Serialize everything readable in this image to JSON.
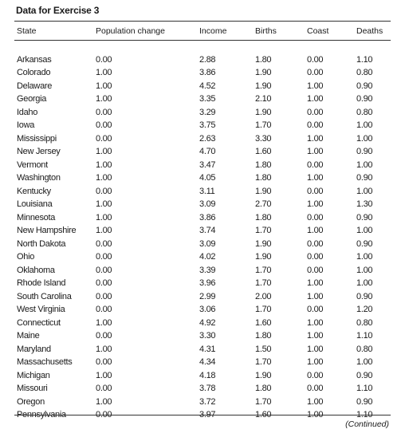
{
  "title": "Data for Exercise 3",
  "headers": {
    "state": "State",
    "population_change": "Population change",
    "income": "Income",
    "births": "Births",
    "coast": "Coast",
    "deaths": "Deaths"
  },
  "rows": [
    {
      "state": "Arkansas",
      "population_change": "0.00",
      "income": "2.88",
      "births": "1.80",
      "coast": "0.00",
      "deaths": "1.10"
    },
    {
      "state": "Colorado",
      "population_change": "1.00",
      "income": "3.86",
      "births": "1.90",
      "coast": "0.00",
      "deaths": "0.80"
    },
    {
      "state": "Delaware",
      "population_change": "1.00",
      "income": "4.52",
      "births": "1.90",
      "coast": "1.00",
      "deaths": "0.90"
    },
    {
      "state": "Georgia",
      "population_change": "1.00",
      "income": "3.35",
      "births": "2.10",
      "coast": "1.00",
      "deaths": "0.90"
    },
    {
      "state": "Idaho",
      "population_change": "0.00",
      "income": "3.29",
      "births": "1.90",
      "coast": "0.00",
      "deaths": "0.80"
    },
    {
      "state": "Iowa",
      "population_change": "0.00",
      "income": "3.75",
      "births": "1.70",
      "coast": "0.00",
      "deaths": "1.00"
    },
    {
      "state": "Mississippi",
      "population_change": "0.00",
      "income": "2.63",
      "births": "3.30",
      "coast": "1.00",
      "deaths": "1.00"
    },
    {
      "state": "New Jersey",
      "population_change": "1.00",
      "income": "4.70",
      "births": "1.60",
      "coast": "1.00",
      "deaths": "0.90"
    },
    {
      "state": "Vermont",
      "population_change": "1.00",
      "income": "3.47",
      "births": "1.80",
      "coast": "0.00",
      "deaths": "1.00"
    },
    {
      "state": "Washington",
      "population_change": "1.00",
      "income": "4.05",
      "births": "1.80",
      "coast": "1.00",
      "deaths": "0.90"
    },
    {
      "state": "Kentucky",
      "population_change": "0.00",
      "income": "3.11",
      "births": "1.90",
      "coast": "0.00",
      "deaths": "1.00"
    },
    {
      "state": "Louisiana",
      "population_change": "1.00",
      "income": "3.09",
      "births": "2.70",
      "coast": "1.00",
      "deaths": "1.30"
    },
    {
      "state": "Minnesota",
      "population_change": "1.00",
      "income": "3.86",
      "births": "1.80",
      "coast": "0.00",
      "deaths": "0.90"
    },
    {
      "state": "New Hampshire",
      "population_change": "1.00",
      "income": "3.74",
      "births": "1.70",
      "coast": "1.00",
      "deaths": "1.00"
    },
    {
      "state": "North Dakota",
      "population_change": "0.00",
      "income": "3.09",
      "births": "1.90",
      "coast": "0.00",
      "deaths": "0.90"
    },
    {
      "state": "Ohio",
      "population_change": "0.00",
      "income": "4.02",
      "births": "1.90",
      "coast": "0.00",
      "deaths": "1.00"
    },
    {
      "state": "Oklahoma",
      "population_change": "0.00",
      "income": "3.39",
      "births": "1.70",
      "coast": "0.00",
      "deaths": "1.00"
    },
    {
      "state": "Rhode Island",
      "population_change": "0.00",
      "income": "3.96",
      "births": "1.70",
      "coast": "1.00",
      "deaths": "1.00"
    },
    {
      "state": "South Carolina",
      "population_change": "0.00",
      "income": "2.99",
      "births": "2.00",
      "coast": "1.00",
      "deaths": "0.90"
    },
    {
      "state": "West Virginia",
      "population_change": "0.00",
      "income": "3.06",
      "births": "1.70",
      "coast": "0.00",
      "deaths": "1.20"
    },
    {
      "state": "Connecticut",
      "population_change": "1.00",
      "income": "4.92",
      "births": "1.60",
      "coast": "1.00",
      "deaths": "0.80"
    },
    {
      "state": "Maine",
      "population_change": "0.00",
      "income": "3.30",
      "births": "1.80",
      "coast": "1.00",
      "deaths": "1.10"
    },
    {
      "state": "Maryland",
      "population_change": "1.00",
      "income": "4.31",
      "births": "1.50",
      "coast": "1.00",
      "deaths": "0.80"
    },
    {
      "state": "Massachusetts",
      "population_change": "0.00",
      "income": "4.34",
      "births": "1.70",
      "coast": "1.00",
      "deaths": "1.00"
    },
    {
      "state": "Michigan",
      "population_change": "1.00",
      "income": "4.18",
      "births": "1.90",
      "coast": "0.00",
      "deaths": "0.90"
    },
    {
      "state": "Missouri",
      "population_change": "0.00",
      "income": "3.78",
      "births": "1.80",
      "coast": "0.00",
      "deaths": "1.10"
    },
    {
      "state": "Oregon",
      "population_change": "1.00",
      "income": "3.72",
      "births": "1.70",
      "coast": "1.00",
      "deaths": "0.90"
    },
    {
      "state": "Pennsylvania",
      "population_change": "0.00",
      "income": "3.97",
      "births": "1.60",
      "coast": "1.00",
      "deaths": "1.10"
    }
  ],
  "continued_note": "(Continued)"
}
